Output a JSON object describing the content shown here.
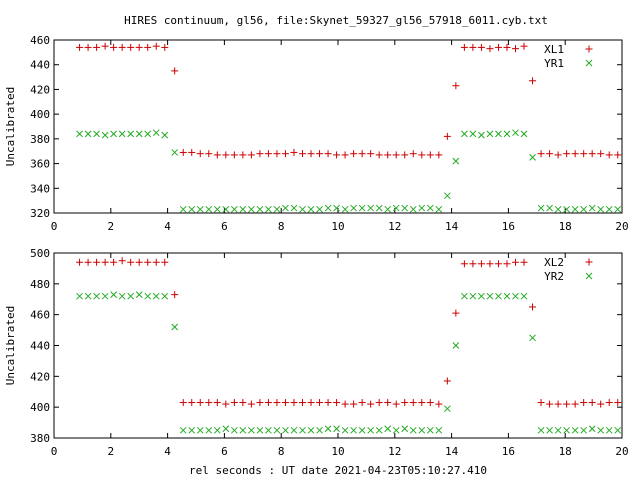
{
  "title": "HIRES continuum, gl56, file:Skynet_59327_gl56_57918_6011.cyb.txt",
  "xlabel": "rel seconds : UT date 2021-04-23T05:10:27.410",
  "colors": {
    "xl": "#cc0000",
    "yr": "#22aa22"
  },
  "chart_data": [
    {
      "type": "scatter",
      "ylabel": "Uncalibrated",
      "xlim": [
        0,
        20
      ],
      "ylim": [
        320,
        460
      ],
      "xticks": [
        0,
        2,
        4,
        6,
        8,
        10,
        12,
        14,
        16,
        18,
        20
      ],
      "yticks": [
        320,
        340,
        360,
        380,
        400,
        420,
        440,
        460
      ],
      "legend_position": "top-right",
      "series": [
        {
          "name": "XL1",
          "marker": "plus",
          "color": "#cc0000",
          "x": [
            0.9,
            1.2,
            1.5,
            1.8,
            2.1,
            2.4,
            2.7,
            3.0,
            3.3,
            3.6,
            3.9,
            4.25,
            4.55,
            4.85,
            5.15,
            5.45,
            5.75,
            6.05,
            6.35,
            6.65,
            6.95,
            7.25,
            7.55,
            7.85,
            8.15,
            8.45,
            8.75,
            9.05,
            9.35,
            9.65,
            9.95,
            10.25,
            10.55,
            10.85,
            11.15,
            11.45,
            11.75,
            12.05,
            12.35,
            12.65,
            12.95,
            13.25,
            13.55,
            13.85,
            14.15,
            14.45,
            14.75,
            15.05,
            15.35,
            15.65,
            15.95,
            16.25,
            16.55,
            16.85,
            17.15,
            17.45,
            17.75,
            18.05,
            18.35,
            18.65,
            18.95,
            19.25,
            19.55,
            19.85
          ],
          "y": [
            454,
            454,
            454,
            455,
            454,
            454,
            454,
            454,
            454,
            455,
            454,
            435,
            369,
            369,
            368,
            368,
            367,
            367,
            367,
            367,
            367,
            368,
            368,
            368,
            368,
            369,
            368,
            368,
            368,
            368,
            367,
            367,
            368,
            368,
            368,
            367,
            367,
            367,
            367,
            368,
            367,
            367,
            367,
            382,
            423,
            454,
            454,
            454,
            453,
            454,
            454,
            453,
            455,
            427,
            368,
            368,
            367,
            368,
            368,
            368,
            368,
            368,
            367,
            367
          ]
        },
        {
          "name": "YR1",
          "marker": "cross",
          "color": "#22aa22",
          "x": [
            0.9,
            1.2,
            1.5,
            1.8,
            2.1,
            2.4,
            2.7,
            3.0,
            3.3,
            3.6,
            3.9,
            4.25,
            4.55,
            4.85,
            5.15,
            5.45,
            5.75,
            6.05,
            6.35,
            6.65,
            6.95,
            7.25,
            7.55,
            7.85,
            8.15,
            8.45,
            8.75,
            9.05,
            9.35,
            9.65,
            9.95,
            10.25,
            10.55,
            10.85,
            11.15,
            11.45,
            11.75,
            12.05,
            12.35,
            12.65,
            12.95,
            13.25,
            13.55,
            13.85,
            14.15,
            14.45,
            14.75,
            15.05,
            15.35,
            15.65,
            15.95,
            16.25,
            16.55,
            16.85,
            17.15,
            17.45,
            17.75,
            18.05,
            18.35,
            18.65,
            18.95,
            19.25,
            19.55,
            19.85
          ],
          "y": [
            384,
            384,
            384,
            383,
            384,
            384,
            384,
            384,
            384,
            385,
            383,
            369,
            323,
            323,
            323,
            323,
            323,
            323,
            323,
            323,
            323,
            323,
            323,
            323,
            324,
            324,
            323,
            323,
            323,
            324,
            324,
            323,
            324,
            324,
            324,
            324,
            323,
            324,
            324,
            323,
            324,
            324,
            323,
            334,
            362,
            384,
            384,
            383,
            384,
            384,
            384,
            385,
            384,
            365,
            324,
            324,
            323,
            323,
            323,
            323,
            324,
            323,
            323,
            323
          ]
        }
      ]
    },
    {
      "type": "scatter",
      "ylabel": "Uncalibrated",
      "xlim": [
        0,
        20
      ],
      "ylim": [
        380,
        500
      ],
      "xticks": [
        0,
        2,
        4,
        6,
        8,
        10,
        12,
        14,
        16,
        18,
        20
      ],
      "yticks": [
        380,
        400,
        420,
        440,
        460,
        480,
        500
      ],
      "legend_position": "top-right",
      "series": [
        {
          "name": "XL2",
          "marker": "plus",
          "color": "#cc0000",
          "x": [
            0.9,
            1.2,
            1.5,
            1.8,
            2.1,
            2.4,
            2.7,
            3.0,
            3.3,
            3.6,
            3.9,
            4.25,
            4.55,
            4.85,
            5.15,
            5.45,
            5.75,
            6.05,
            6.35,
            6.65,
            6.95,
            7.25,
            7.55,
            7.85,
            8.15,
            8.45,
            8.75,
            9.05,
            9.35,
            9.65,
            9.95,
            10.25,
            10.55,
            10.85,
            11.15,
            11.45,
            11.75,
            12.05,
            12.35,
            12.65,
            12.95,
            13.25,
            13.55,
            13.85,
            14.15,
            14.45,
            14.75,
            15.05,
            15.35,
            15.65,
            15.95,
            16.25,
            16.55,
            16.85,
            17.15,
            17.45,
            17.75,
            18.05,
            18.35,
            18.65,
            18.95,
            19.25,
            19.55,
            19.85
          ],
          "y": [
            494,
            494,
            494,
            494,
            494,
            495,
            494,
            494,
            494,
            494,
            494,
            473,
            403,
            403,
            403,
            403,
            403,
            402,
            403,
            403,
            402,
            403,
            403,
            403,
            403,
            403,
            403,
            403,
            403,
            403,
            403,
            402,
            402,
            403,
            402,
            403,
            403,
            402,
            403,
            403,
            403,
            403,
            402,
            417,
            461,
            493,
            493,
            493,
            493,
            493,
            493,
            494,
            494,
            465,
            403,
            402,
            402,
            402,
            402,
            403,
            403,
            402,
            403,
            403
          ]
        },
        {
          "name": "YR2",
          "marker": "cross",
          "color": "#22aa22",
          "x": [
            0.9,
            1.2,
            1.5,
            1.8,
            2.1,
            2.4,
            2.7,
            3.0,
            3.3,
            3.6,
            3.9,
            4.25,
            4.55,
            4.85,
            5.15,
            5.45,
            5.75,
            6.05,
            6.35,
            6.65,
            6.95,
            7.25,
            7.55,
            7.85,
            8.15,
            8.45,
            8.75,
            9.05,
            9.35,
            9.65,
            9.95,
            10.25,
            10.55,
            10.85,
            11.15,
            11.45,
            11.75,
            12.05,
            12.35,
            12.65,
            12.95,
            13.25,
            13.55,
            13.85,
            14.15,
            14.45,
            14.75,
            15.05,
            15.35,
            15.65,
            15.95,
            16.25,
            16.55,
            16.85,
            17.15,
            17.45,
            17.75,
            18.05,
            18.35,
            18.65,
            18.95,
            19.25,
            19.55,
            19.85
          ],
          "y": [
            472,
            472,
            472,
            472,
            473,
            472,
            472,
            473,
            472,
            472,
            472,
            452,
            385,
            385,
            385,
            385,
            385,
            386,
            385,
            385,
            385,
            385,
            385,
            385,
            385,
            385,
            385,
            385,
            385,
            386,
            386,
            385,
            385,
            385,
            385,
            385,
            386,
            385,
            386,
            385,
            385,
            385,
            385,
            399,
            440,
            472,
            472,
            472,
            472,
            472,
            472,
            472,
            472,
            445,
            385,
            385,
            385,
            385,
            385,
            385,
            386,
            385,
            385,
            385
          ]
        }
      ]
    }
  ]
}
